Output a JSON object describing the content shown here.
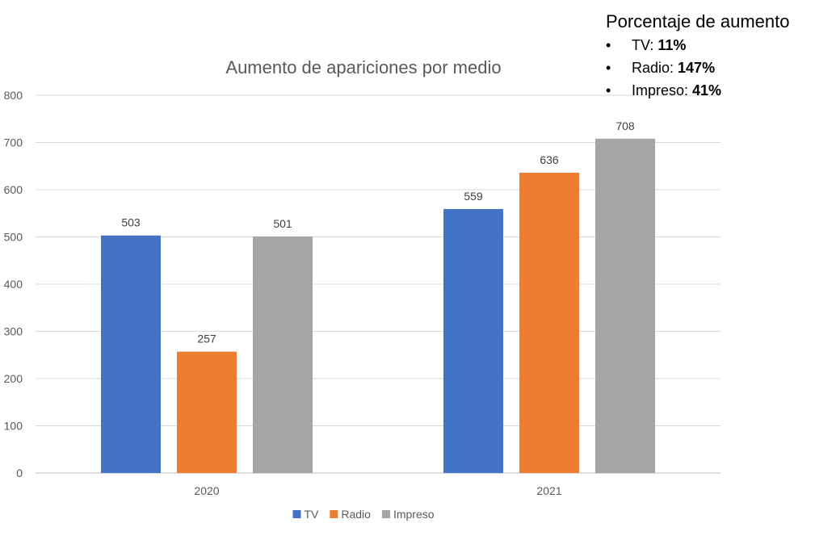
{
  "chart_data": {
    "type": "bar",
    "title": "Aumento de apariciones por medio",
    "categories": [
      "2020",
      "2021"
    ],
    "series": [
      {
        "name": "TV",
        "color": "#4472c4",
        "values": [
          503,
          559
        ]
      },
      {
        "name": "Radio",
        "color": "#ed7d31",
        "values": [
          257,
          636
        ]
      },
      {
        "name": "Impreso",
        "color": "#a5a5a5",
        "values": [
          501,
          708
        ]
      }
    ],
    "ylim": [
      0,
      800
    ],
    "yticks": [
      0,
      100,
      200,
      300,
      400,
      500,
      600,
      700,
      800
    ],
    "xlabel": "",
    "ylabel": "",
    "grid": true,
    "legend": "bottom",
    "data_labels": true
  },
  "summary": {
    "title": "Porcentaje de aumento",
    "bullet": "•",
    "items": [
      {
        "label": "TV:",
        "value": "11%"
      },
      {
        "label": "Radio:",
        "value": "147%"
      },
      {
        "label": "Impreso:",
        "value": "41%"
      }
    ]
  }
}
